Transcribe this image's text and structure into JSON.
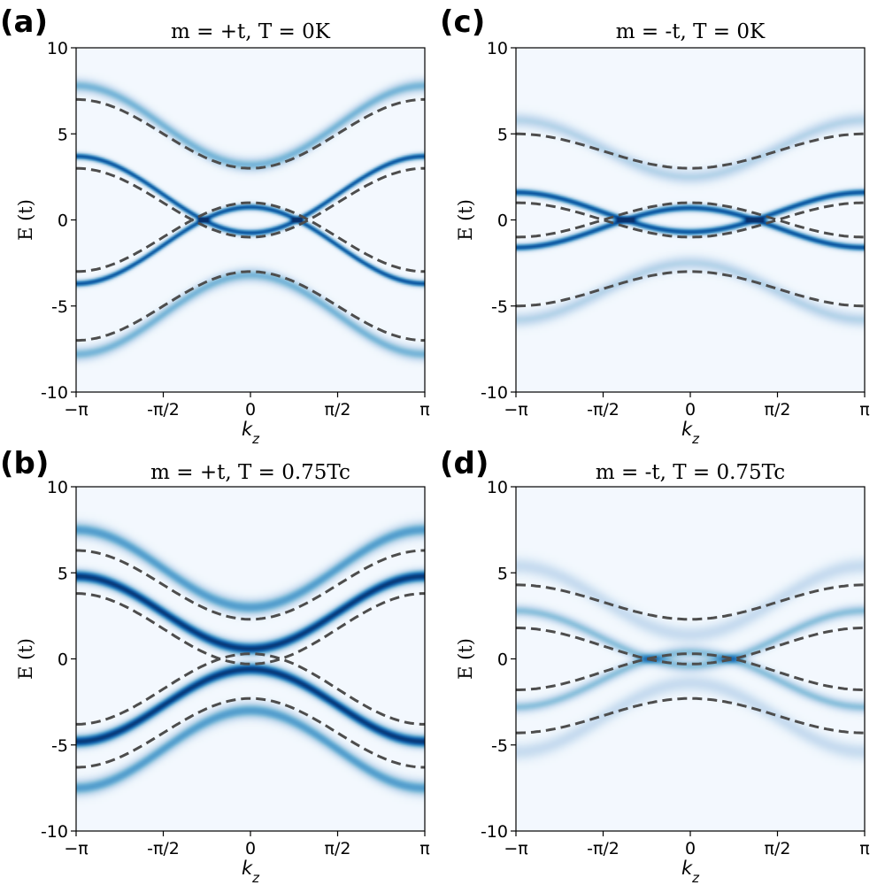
{
  "figure": {
    "description_labels": [
      "(a)",
      "(b)",
      "(c)",
      "(d)"
    ]
  },
  "chart_data": [
    {
      "id": "a",
      "type": "heatmap",
      "panel_label": "(a)",
      "title": "m = +t, T = 0K",
      "xlabel": "k_z",
      "ylabel": "E (t)",
      "xlim": [
        -3.14159,
        3.14159
      ],
      "ylim": [
        -10,
        10
      ],
      "xticks": [
        "−π",
        "-π/2",
        "0",
        "π/2",
        "π"
      ],
      "yticks": [
        "-10",
        "-5",
        "0",
        "5",
        "10"
      ],
      "colormap": "Blues",
      "dashed_bands": [
        {
          "edge": 7.0,
          "center": 3.0
        },
        {
          "edge": 3.0,
          "center": -1.0
        },
        {
          "edge": -3.0,
          "center": 1.0
        },
        {
          "edge": -7.0,
          "center": -3.0
        }
      ],
      "spectral_bands": [
        {
          "edge": 7.8,
          "center": 3.2,
          "width": 0.28,
          "intensity": 0.45
        },
        {
          "edge": 3.7,
          "center": -0.75,
          "width": 0.14,
          "intensity": 0.85
        },
        {
          "edge": -3.7,
          "center": 0.75,
          "width": 0.14,
          "intensity": 0.85
        },
        {
          "edge": -7.8,
          "center": -3.2,
          "width": 0.28,
          "intensity": 0.45
        }
      ]
    },
    {
      "id": "b",
      "type": "heatmap",
      "panel_label": "(b)",
      "title": "m = +t, T = 0.75Tc",
      "xlabel": "k_z",
      "ylabel": "E (t)",
      "xlim": [
        -3.14159,
        3.14159
      ],
      "ylim": [
        -10,
        10
      ],
      "xticks": [
        "−π",
        "-π/2",
        "0",
        "π/2",
        "π"
      ],
      "yticks": [
        "-10",
        "-5",
        "0",
        "5",
        "10"
      ],
      "colormap": "Blues",
      "dashed_bands": [
        {
          "edge": 6.3,
          "center": 2.3
        },
        {
          "edge": 3.8,
          "center": -0.3
        },
        {
          "edge": -3.8,
          "center": 0.3
        },
        {
          "edge": -6.3,
          "center": -2.3
        }
      ],
      "spectral_bands": [
        {
          "edge": 7.5,
          "center": 3.0,
          "width": 0.32,
          "intensity": 0.55
        },
        {
          "edge": 4.8,
          "center": 0.6,
          "width": 0.26,
          "intensity": 0.95
        },
        {
          "edge": -4.8,
          "center": -0.6,
          "width": 0.26,
          "intensity": 0.95
        },
        {
          "edge": -7.5,
          "center": -3.0,
          "width": 0.32,
          "intensity": 0.55
        }
      ]
    },
    {
      "id": "c",
      "type": "heatmap",
      "panel_label": "(c)",
      "title": "m = -t, T = 0K",
      "xlabel": "k_z",
      "ylabel": "E (t)",
      "xlim": [
        -3.14159,
        3.14159
      ],
      "ylim": [
        -10,
        10
      ],
      "xticks": [
        "−π",
        "-π/2",
        "0",
        "π/2",
        "π"
      ],
      "yticks": [
        "-10",
        "-5",
        "0",
        "5",
        "10"
      ],
      "colormap": "Blues",
      "dashed_bands": [
        {
          "edge": 5.0,
          "center": 3.0
        },
        {
          "edge": 1.0,
          "center": -1.0
        },
        {
          "edge": -1.0,
          "center": 1.0
        },
        {
          "edge": -5.0,
          "center": -3.0
        }
      ],
      "spectral_bands": [
        {
          "edge": 5.8,
          "center": 2.5,
          "width": 0.3,
          "intensity": 0.28
        },
        {
          "edge": 1.6,
          "center": -0.7,
          "width": 0.15,
          "intensity": 0.85
        },
        {
          "edge": -1.6,
          "center": 0.7,
          "width": 0.15,
          "intensity": 0.85
        },
        {
          "edge": -5.8,
          "center": -2.5,
          "width": 0.3,
          "intensity": 0.28
        }
      ]
    },
    {
      "id": "d",
      "type": "heatmap",
      "panel_label": "(d)",
      "title": "m = -t, T = 0.75Tc",
      "xlabel": "k_z",
      "ylabel": "E (t)",
      "xlim": [
        -3.14159,
        3.14159
      ],
      "ylim": [
        -10,
        10
      ],
      "xticks": [
        "−π",
        "-π/2",
        "0",
        "π/2",
        "π"
      ],
      "yticks": [
        "-10",
        "-5",
        "0",
        "5",
        "10"
      ],
      "colormap": "Blues",
      "dashed_bands": [
        {
          "edge": 4.3,
          "center": 2.3
        },
        {
          "edge": 1.8,
          "center": -0.3
        },
        {
          "edge": -1.8,
          "center": 0.3
        },
        {
          "edge": -4.3,
          "center": -2.3
        }
      ],
      "spectral_bands": [
        {
          "edge": 5.4,
          "center": 1.4,
          "width": 0.35,
          "intensity": 0.22
        },
        {
          "edge": 2.8,
          "center": -0.4,
          "width": 0.25,
          "intensity": 0.4
        },
        {
          "edge": -2.8,
          "center": 0.4,
          "width": 0.25,
          "intensity": 0.4
        },
        {
          "edge": -5.4,
          "center": -1.4,
          "width": 0.35,
          "intensity": 0.22
        }
      ]
    }
  ]
}
